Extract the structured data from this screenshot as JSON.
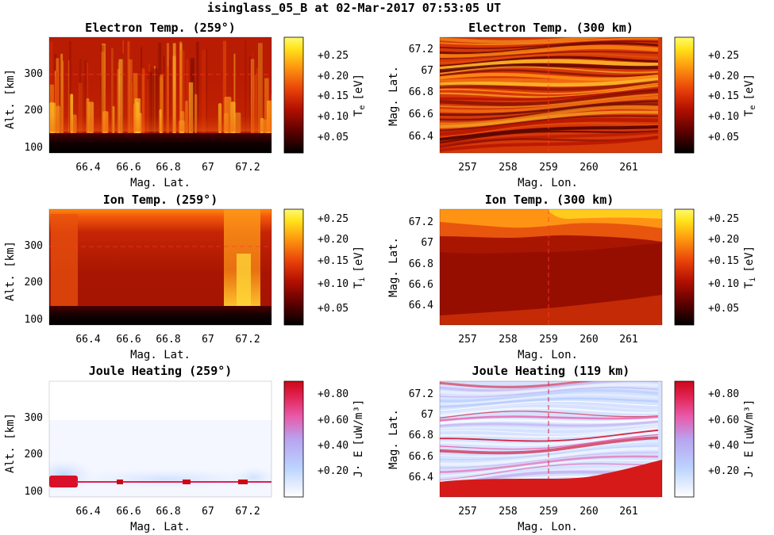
{
  "figure_title": "isinglass_05_B at 02-Mar-2017 07:53:05 UT",
  "chart_data": [
    {
      "type": "heatmap",
      "title": "Electron Temp. (259°)",
      "xlabel": "Mag. Lat.",
      "ylabel": "Alt. [km]",
      "xticks": [
        "66.4",
        "66.6",
        "66.8",
        "67",
        "67.2"
      ],
      "yticks": [
        "100",
        "200",
        "300"
      ],
      "xlim": [
        66.2,
        67.3
      ],
      "ylim": [
        80,
        400
      ],
      "colorbar": {
        "label": "T",
        "sub": "e",
        "unit": "[eV]",
        "ticks": [
          "+0.25",
          "+0.20",
          "+0.15",
          "+0.10",
          "+0.05"
        ],
        "range": [
          0.0,
          0.29
        ],
        "colormap": "hot"
      },
      "dashed_line": {
        "orientation": "horizontal",
        "value": 300
      }
    },
    {
      "type": "heatmap",
      "title": "Electron Temp. (300 km)",
      "xlabel": "Mag. Lon.",
      "ylabel": "Mag. Lat.",
      "xticks": [
        "257",
        "258",
        "259",
        "260",
        "261"
      ],
      "yticks": [
        "66.4",
        "66.6",
        "66.8",
        "67",
        "67.2"
      ],
      "xlim": [
        256.3,
        261.8
      ],
      "ylim": [
        66.2,
        67.3
      ],
      "colorbar": {
        "label": "T",
        "sub": "e",
        "unit": "[eV]",
        "ticks": [
          "+0.25",
          "+0.20",
          "+0.15",
          "+0.10",
          "+0.05"
        ],
        "range": [
          0.0,
          0.29
        ],
        "colormap": "hot"
      },
      "dashed_line": {
        "orientation": "vertical",
        "value": 259
      }
    },
    {
      "type": "heatmap",
      "title": "Ion Temp. (259°)",
      "xlabel": "Mag. Lat.",
      "ylabel": "Alt. [km]",
      "xticks": [
        "66.4",
        "66.6",
        "66.8",
        "67",
        "67.2"
      ],
      "yticks": [
        "100",
        "200",
        "300"
      ],
      "xlim": [
        66.2,
        67.3
      ],
      "ylim": [
        80,
        400
      ],
      "colorbar": {
        "label": "T",
        "sub": "i",
        "unit": "[eV]",
        "ticks": [
          "+0.25",
          "+0.20",
          "+0.15",
          "+0.10",
          "+0.05"
        ],
        "range": [
          0.0,
          0.29
        ],
        "colormap": "hot"
      },
      "dashed_line": {
        "orientation": "horizontal",
        "value": 300
      }
    },
    {
      "type": "heatmap",
      "title": "Ion Temp. (300 km)",
      "xlabel": "Mag. Lon.",
      "ylabel": "Mag. Lat.",
      "xticks": [
        "257",
        "258",
        "259",
        "260",
        "261"
      ],
      "yticks": [
        "66.4",
        "66.6",
        "66.8",
        "67",
        "67.2"
      ],
      "xlim": [
        256.3,
        261.8
      ],
      "ylim": [
        66.2,
        67.3
      ],
      "colorbar": {
        "label": "T",
        "sub": "i",
        "unit": "[eV]",
        "ticks": [
          "+0.25",
          "+0.20",
          "+0.15",
          "+0.10",
          "+0.05"
        ],
        "range": [
          0.0,
          0.29
        ],
        "colormap": "hot"
      },
      "dashed_line": {
        "orientation": "vertical",
        "value": 259
      }
    },
    {
      "type": "heatmap",
      "title": "Joule Heating (259°)",
      "xlabel": "Mag. Lat.",
      "ylabel": "Alt. [km]",
      "xticks": [
        "66.4",
        "66.6",
        "66.8",
        "67",
        "67.2"
      ],
      "yticks": [
        "100",
        "200",
        "300"
      ],
      "xlim": [
        66.2,
        67.3
      ],
      "ylim": [
        80,
        400
      ],
      "colorbar": {
        "label": "J· E",
        "sub": "",
        "unit": "[uW/m³]",
        "ticks": [
          "+0.80",
          "+0.60",
          "+0.40",
          "+0.20"
        ],
        "range": [
          0.0,
          0.95
        ],
        "colormap": "cool-warm-white"
      },
      "dashed_line": {
        "orientation": "horizontal",
        "value": 119
      }
    },
    {
      "type": "heatmap",
      "title": "Joule Heating (119 km)",
      "xlabel": "Mag. Lon.",
      "ylabel": "Mag. Lat.",
      "xticks": [
        "257",
        "258",
        "259",
        "260",
        "261"
      ],
      "yticks": [
        "66.4",
        "66.6",
        "66.8",
        "67",
        "67.2"
      ],
      "xlim": [
        256.3,
        261.8
      ],
      "ylim": [
        66.2,
        67.3
      ],
      "colorbar": {
        "label": "J· E",
        "sub": "",
        "unit": "[uW/m³]",
        "ticks": [
          "+0.80",
          "+0.60",
          "+0.40",
          "+0.20"
        ],
        "range": [
          0.0,
          0.95
        ],
        "colormap": "cool-warm-white"
      },
      "dashed_line": {
        "orientation": "vertical",
        "value": 259
      }
    }
  ]
}
